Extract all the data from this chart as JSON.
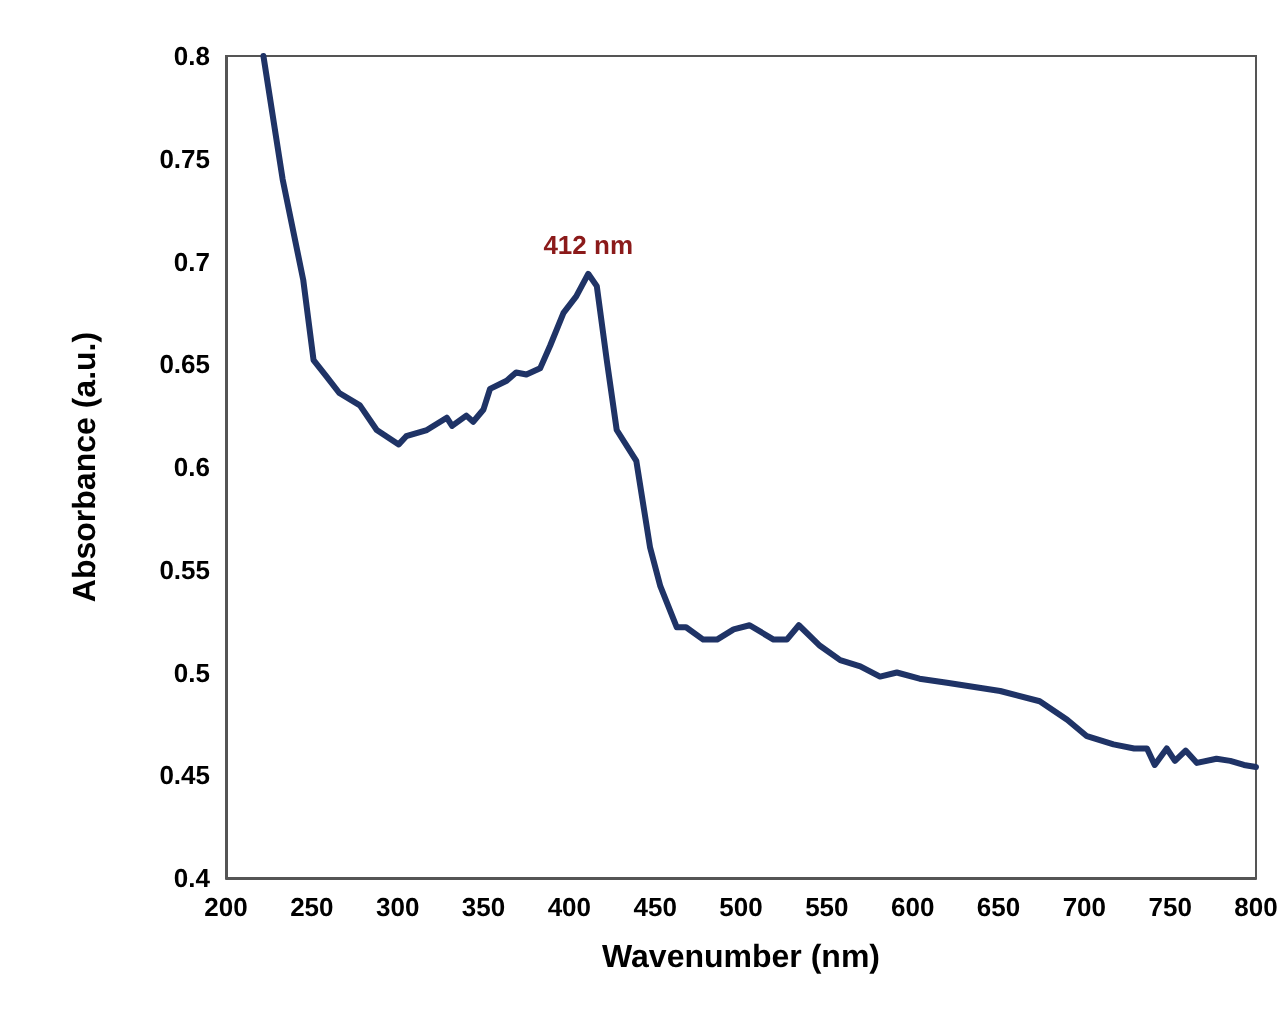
{
  "chart_data": {
    "type": "line",
    "xlabel": "Wavenumber (nm)",
    "ylabel": "Absorbance (a.u.)",
    "x": [
      221.8,
      233,
      245,
      251,
      258.6,
      266,
      278,
      287.8,
      300.6,
      305,
      317,
      328.6,
      331.7,
      340,
      344,
      350,
      353.8,
      363.5,
      369,
      375,
      383,
      388.8,
      396.6,
      404,
      411,
      416,
      421.8,
      427.6,
      439,
      447,
      453,
      462.6,
      468,
      478,
      486,
      495.7,
      505,
      519,
      526.7,
      533.7,
      546,
      557.8,
      569.5,
      581,
      590.8,
      604,
      620,
      651,
      674,
      690,
      701.5,
      717,
      729,
      736.5,
      741,
      748,
      752.8,
      759,
      765.6,
      777,
      785,
      793,
      800
    ],
    "series": [
      {
        "color": "#1f3366",
        "values": [
          0.8,
          0.74,
          0.691,
          0.652,
          0.644,
          0.636,
          0.63,
          0.618,
          0.611,
          0.615,
          0.618,
          0.624,
          0.62,
          0.625,
          0.622,
          0.628,
          0.638,
          0.642,
          0.646,
          0.645,
          0.648,
          0.659,
          0.675,
          0.683,
          0.694,
          0.688,
          0.652,
          0.618,
          0.603,
          0.561,
          0.542,
          0.522,
          0.522,
          0.516,
          0.516,
          0.521,
          0.523,
          0.516,
          0.516,
          0.523,
          0.513,
          0.506,
          0.503,
          0.498,
          0.5,
          0.497,
          0.495,
          0.491,
          0.486,
          0.477,
          0.469,
          0.465,
          0.463,
          0.463,
          0.455,
          0.463,
          0.457,
          0.462,
          0.456,
          0.458,
          0.457,
          0.455,
          0.454
        ]
      }
    ],
    "xlim": [
      200,
      800
    ],
    "xticks": [
      200,
      250,
      300,
      350,
      400,
      450,
      500,
      550,
      600,
      650,
      700,
      750,
      800
    ],
    "ylim": [
      0.4,
      0.8
    ],
    "yticks": [
      0.4,
      0.45,
      0.5,
      0.55,
      0.6,
      0.65,
      0.7,
      0.75,
      0.8
    ],
    "annotations": [
      {
        "text": "412 nm",
        "x": 411,
        "y": 0.694
      }
    ],
    "grid": false,
    "marker": "none",
    "line_style": "solid"
  }
}
